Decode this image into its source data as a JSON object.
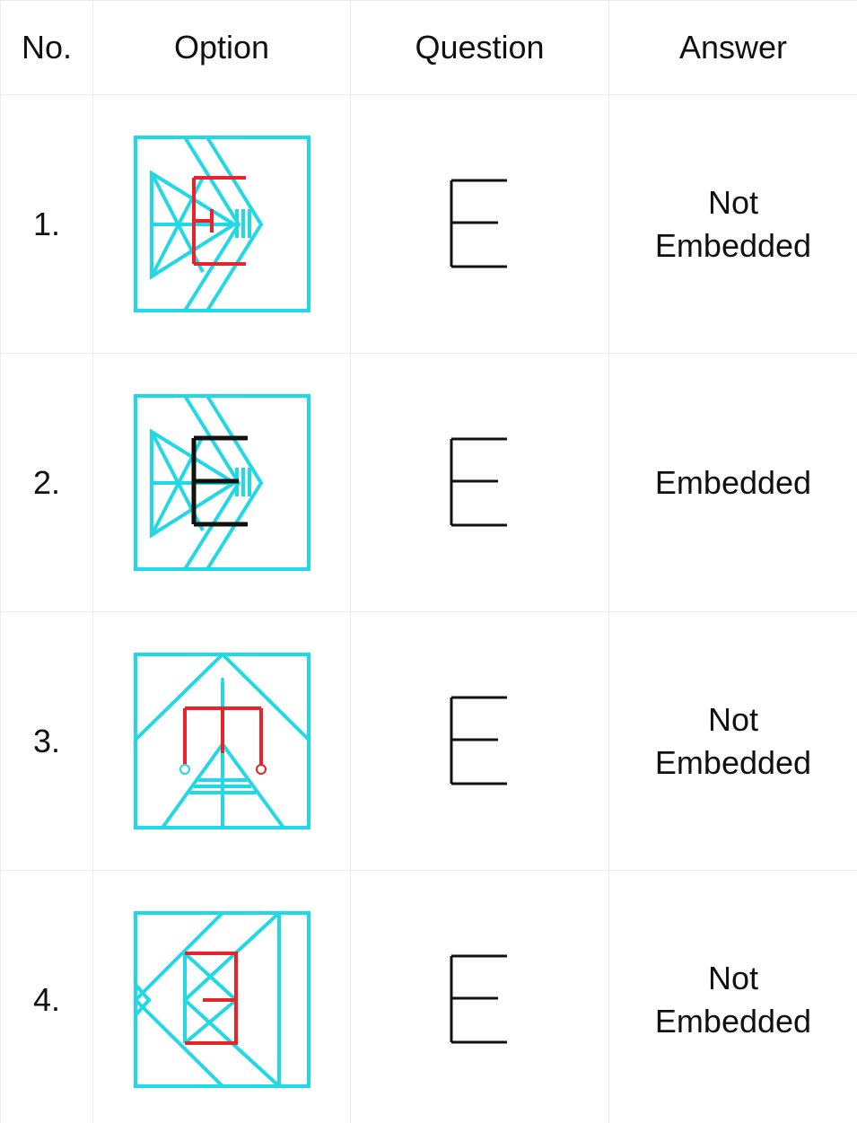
{
  "table": {
    "header": [
      "No.",
      "Option",
      "Question",
      "Answer"
    ],
    "rows": [
      [
        "1.",
        "Not Embedded"
      ],
      [
        "2.",
        "Embedded"
      ],
      [
        "3.",
        "Not Embedded"
      ],
      [
        "4.",
        "Not Embedded"
      ]
    ]
  }
}
